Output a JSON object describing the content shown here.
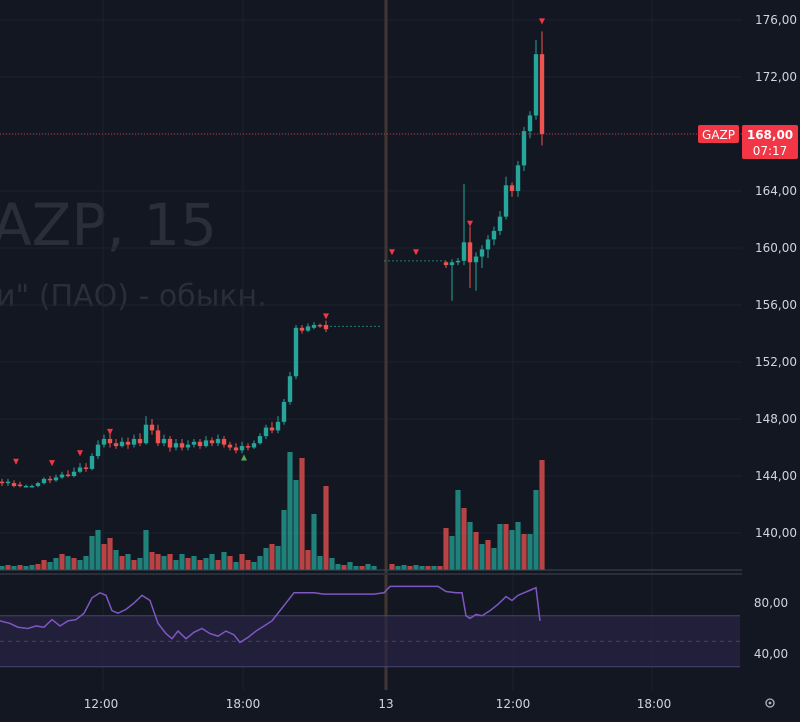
{
  "chart_data": {
    "type": "candlestick",
    "symbol": "GAZP",
    "watermark_title": "AZP, 15",
    "watermark_subtitle": "и\" (ПАО) - обыкн.",
    "price_axis": {
      "ticks": [
        "176,00",
        "172,00",
        "168,00",
        "164,00",
        "160,00",
        "156,00",
        "152,00",
        "148,00",
        "144,00",
        "140,00"
      ],
      "tick_values": [
        176,
        172,
        168,
        164,
        160,
        156,
        152,
        148,
        144,
        140
      ],
      "range": [
        136.5,
        177.5
      ]
    },
    "rsi_axis": {
      "ticks": [
        "80,00",
        "40,00"
      ],
      "tick_values": [
        80,
        40
      ],
      "range": [
        20,
        105
      ],
      "band": [
        30,
        70
      ]
    },
    "time_axis": {
      "labels": [
        "12:00",
        "18:00",
        "13",
        "12:00",
        "18:00"
      ]
    },
    "last_price": {
      "value": 168,
      "label": "168,00",
      "countdown": "07:17",
      "symbol_tag": "GAZP"
    },
    "rsi_series_name": "",
    "colors": {
      "up": "#26a69a",
      "down": "#ef5350",
      "rsi_line": "#7e57c2",
      "rsi_band": "#2a2447",
      "background": "#131722",
      "grid": "#1e222d",
      "price_tag": "#f23645",
      "signal_up": "#4caf50",
      "signal_down": "#f23645",
      "session_line": "#4a3b33"
    }
  }
}
